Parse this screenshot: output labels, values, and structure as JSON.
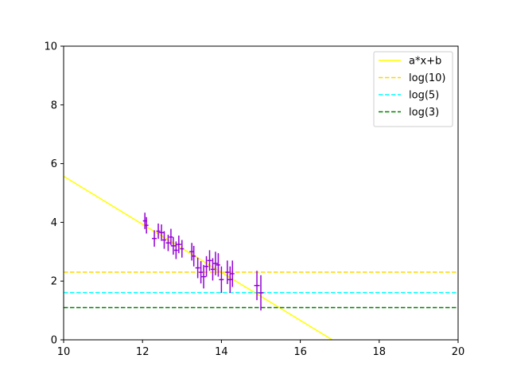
{
  "chart_data": {
    "type": "scatter",
    "title": "",
    "xlabel": "",
    "ylabel": "",
    "xlim": [
      10,
      20
    ],
    "ylim": [
      0,
      10
    ],
    "xticks": [
      "10",
      "12",
      "14",
      "16",
      "18",
      "20"
    ],
    "yticks": [
      "0",
      "2",
      "4",
      "6",
      "8",
      "10"
    ],
    "grid": false,
    "legend_position": "top-right",
    "series": [
      {
        "name": "a*x+b",
        "kind": "fit-line",
        "color": "#ffff00",
        "style": "solid",
        "x": [
          10,
          16.81
        ],
        "y": [
          5.57,
          0
        ]
      },
      {
        "name": "log(10)",
        "kind": "hline",
        "color": "#ffd700",
        "style": "dashed",
        "y": 2.3026
      },
      {
        "name": "log(5)",
        "kind": "hline",
        "color": "#00ffff",
        "style": "dashed",
        "y": 1.6094
      },
      {
        "name": "log(3)",
        "kind": "hline",
        "color": "#008000",
        "style": "dashed",
        "y": 1.0986
      },
      {
        "name": "",
        "kind": "errorbar",
        "color": "#9400d3",
        "points": [
          {
            "x": 12.06,
            "y": 4.05,
            "xerr": 0.05,
            "yerr": 0.28
          },
          {
            "x": 12.1,
            "y": 3.9,
            "xerr": 0.05,
            "yerr": 0.28
          },
          {
            "x": 12.3,
            "y": 3.45,
            "xerr": 0.06,
            "yerr": 0.28
          },
          {
            "x": 12.4,
            "y": 3.7,
            "xerr": 0.05,
            "yerr": 0.26
          },
          {
            "x": 12.48,
            "y": 3.65,
            "xerr": 0.06,
            "yerr": 0.28
          },
          {
            "x": 12.55,
            "y": 3.4,
            "xerr": 0.05,
            "yerr": 0.3
          },
          {
            "x": 12.65,
            "y": 3.3,
            "xerr": 0.06,
            "yerr": 0.28
          },
          {
            "x": 12.72,
            "y": 3.5,
            "xerr": 0.05,
            "yerr": 0.28
          },
          {
            "x": 12.78,
            "y": 3.2,
            "xerr": 0.06,
            "yerr": 0.3
          },
          {
            "x": 12.85,
            "y": 3.05,
            "xerr": 0.05,
            "yerr": 0.3
          },
          {
            "x": 12.92,
            "y": 3.25,
            "xerr": 0.06,
            "yerr": 0.3
          },
          {
            "x": 13.0,
            "y": 3.1,
            "xerr": 0.05,
            "yerr": 0.3
          },
          {
            "x": 13.25,
            "y": 3.0,
            "xerr": 0.06,
            "yerr": 0.3
          },
          {
            "x": 13.3,
            "y": 2.85,
            "xerr": 0.05,
            "yerr": 0.35
          },
          {
            "x": 13.4,
            "y": 2.45,
            "xerr": 0.06,
            "yerr": 0.35
          },
          {
            "x": 13.48,
            "y": 2.3,
            "xerr": 0.05,
            "yerr": 0.38
          },
          {
            "x": 13.55,
            "y": 2.15,
            "xerr": 0.06,
            "yerr": 0.4
          },
          {
            "x": 13.62,
            "y": 2.5,
            "xerr": 0.05,
            "yerr": 0.35
          },
          {
            "x": 13.7,
            "y": 2.7,
            "xerr": 0.06,
            "yerr": 0.35
          },
          {
            "x": 13.78,
            "y": 2.4,
            "xerr": 0.05,
            "yerr": 0.38
          },
          {
            "x": 13.85,
            "y": 2.6,
            "xerr": 0.06,
            "yerr": 0.4
          },
          {
            "x": 13.92,
            "y": 2.55,
            "xerr": 0.05,
            "yerr": 0.4
          },
          {
            "x": 14.0,
            "y": 2.05,
            "xerr": 0.06,
            "yerr": 0.45
          },
          {
            "x": 14.15,
            "y": 2.3,
            "xerr": 0.05,
            "yerr": 0.4
          },
          {
            "x": 14.22,
            "y": 2.05,
            "xerr": 0.06,
            "yerr": 0.45
          },
          {
            "x": 14.28,
            "y": 2.25,
            "xerr": 0.05,
            "yerr": 0.45
          },
          {
            "x": 14.9,
            "y": 1.85,
            "xerr": 0.07,
            "yerr": 0.5
          },
          {
            "x": 15.0,
            "y": 1.6,
            "xerr": 0.07,
            "yerr": 0.6
          }
        ]
      }
    ]
  }
}
